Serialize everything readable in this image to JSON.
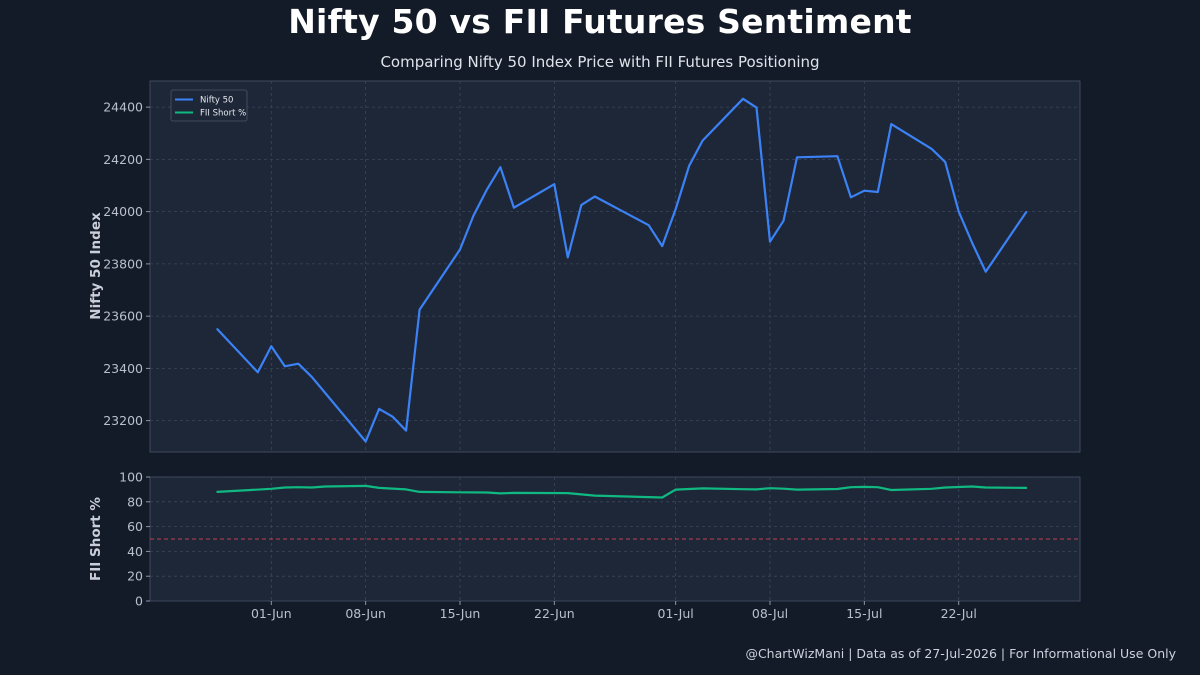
{
  "header": {
    "title": "Nifty 50 vs FII Futures Sentiment",
    "subtitle": "Comparing Nifty 50 Index Price with FII Futures Positioning"
  },
  "footer": {
    "text": "@ChartWizMani | Data as of 27-Jul-2026 | For Informational Use Only"
  },
  "colors": {
    "background": "#131a28",
    "panel": "#1e2737",
    "nifty_line": "#3b82f6",
    "fii_line": "#10b981",
    "reference_line": "#d9475a",
    "grid": "#3b475c"
  },
  "chart_data": [
    {
      "type": "line",
      "ylabel": "Nifty 50 Index",
      "xlabel": "",
      "ylim": [
        23080,
        24500
      ],
      "yticks": [
        23200,
        23400,
        23600,
        23800,
        24000,
        24200,
        24400
      ],
      "grid": true,
      "legend": {
        "placement": "top-left",
        "entries": [
          "Nifty 50",
          "FII Short %"
        ]
      },
      "series": [
        {
          "name": "Nifty 50",
          "color": "#3b82f6",
          "points": [
            [
              "2026-05-28",
              23550
            ],
            [
              "2026-05-31",
              23385
            ],
            [
              "2026-06-01",
              23485
            ],
            [
              "2026-06-02",
              23408
            ],
            [
              "2026-06-03",
              23418
            ],
            [
              "2026-06-04",
              23368
            ],
            [
              "2026-06-08",
              23120
            ],
            [
              "2026-06-09",
              23245
            ],
            [
              "2026-06-10",
              23215
            ],
            [
              "2026-06-11",
              23162
            ],
            [
              "2026-06-12",
              23625
            ],
            [
              "2026-06-15",
              23855
            ],
            [
              "2026-06-16",
              23985
            ],
            [
              "2026-06-17",
              24085
            ],
            [
              "2026-06-18",
              24170
            ],
            [
              "2026-06-19",
              24015
            ],
            [
              "2026-06-22",
              24105
            ],
            [
              "2026-06-23",
              23825
            ],
            [
              "2026-06-24",
              24025
            ],
            [
              "2026-06-25",
              24058
            ],
            [
              "2026-06-29",
              23948
            ],
            [
              "2026-06-30",
              23868
            ],
            [
              "2026-07-01",
              24010
            ],
            [
              "2026-07-02",
              24175
            ],
            [
              "2026-07-03",
              24272
            ],
            [
              "2026-07-06",
              24432
            ],
            [
              "2026-07-07",
              24398
            ],
            [
              "2026-07-08",
              23885
            ],
            [
              "2026-07-09",
              23965
            ],
            [
              "2026-07-10",
              24208
            ],
            [
              "2026-07-13",
              24212
            ],
            [
              "2026-07-14",
              24055
            ],
            [
              "2026-07-15",
              24080
            ],
            [
              "2026-07-16",
              24075
            ],
            [
              "2026-07-17",
              24335
            ],
            [
              "2026-07-20",
              24240
            ],
            [
              "2026-07-21",
              24190
            ],
            [
              "2026-07-22",
              24000
            ],
            [
              "2026-07-23",
              23880
            ],
            [
              "2026-07-24",
              23770
            ],
            [
              "2026-07-27",
              23998
            ]
          ]
        }
      ]
    },
    {
      "type": "line",
      "ylabel": "FII Short %",
      "xlabel": "",
      "ylim": [
        0,
        100
      ],
      "yticks": [
        0,
        20,
        40,
        60,
        80,
        100
      ],
      "grid": true,
      "reference_line": {
        "y": 50,
        "style": "dashed",
        "color": "#d9475a"
      },
      "x_tick_labels": [
        "01-Jun",
        "08-Jun",
        "15-Jun",
        "22-Jun",
        "01-Jul",
        "08-Jul",
        "15-Jul",
        "22-Jul"
      ],
      "x_tick_dates": [
        "2026-06-01",
        "2026-06-08",
        "2026-06-15",
        "2026-06-22",
        "2026-07-01",
        "2026-07-08",
        "2026-07-15",
        "2026-07-22"
      ],
      "series": [
        {
          "name": "FII Short %",
          "color": "#10b981",
          "points": [
            [
              "2026-05-28",
              88.0
            ],
            [
              "2026-06-01",
              90.5
            ],
            [
              "2026-06-02",
              91.5
            ],
            [
              "2026-06-03",
              91.8
            ],
            [
              "2026-06-04",
              91.5
            ],
            [
              "2026-06-05",
              92.3
            ],
            [
              "2026-06-08",
              92.8
            ],
            [
              "2026-06-09",
              91.2
            ],
            [
              "2026-06-11",
              90.0
            ],
            [
              "2026-06-12",
              88.0
            ],
            [
              "2026-06-15",
              87.7
            ],
            [
              "2026-06-17",
              87.5
            ],
            [
              "2026-06-18",
              86.8
            ],
            [
              "2026-06-19",
              87.2
            ],
            [
              "2026-06-23",
              87.0
            ],
            [
              "2026-06-25",
              85.0
            ],
            [
              "2026-06-30",
              83.5
            ],
            [
              "2026-07-01",
              89.8
            ],
            [
              "2026-07-03",
              90.8
            ],
            [
              "2026-07-06",
              90.2
            ],
            [
              "2026-07-07",
              90.0
            ],
            [
              "2026-07-08",
              91.0
            ],
            [
              "2026-07-09",
              90.6
            ],
            [
              "2026-07-10",
              89.8
            ],
            [
              "2026-07-13",
              90.3
            ],
            [
              "2026-07-14",
              91.8
            ],
            [
              "2026-07-15",
              92.0
            ],
            [
              "2026-07-16",
              91.8
            ],
            [
              "2026-07-17",
              89.5
            ],
            [
              "2026-07-20",
              90.5
            ],
            [
              "2026-07-21",
              91.5
            ],
            [
              "2026-07-23",
              92.3
            ],
            [
              "2026-07-24",
              91.5
            ],
            [
              "2026-07-27",
              91.2
            ]
          ]
        }
      ]
    }
  ]
}
